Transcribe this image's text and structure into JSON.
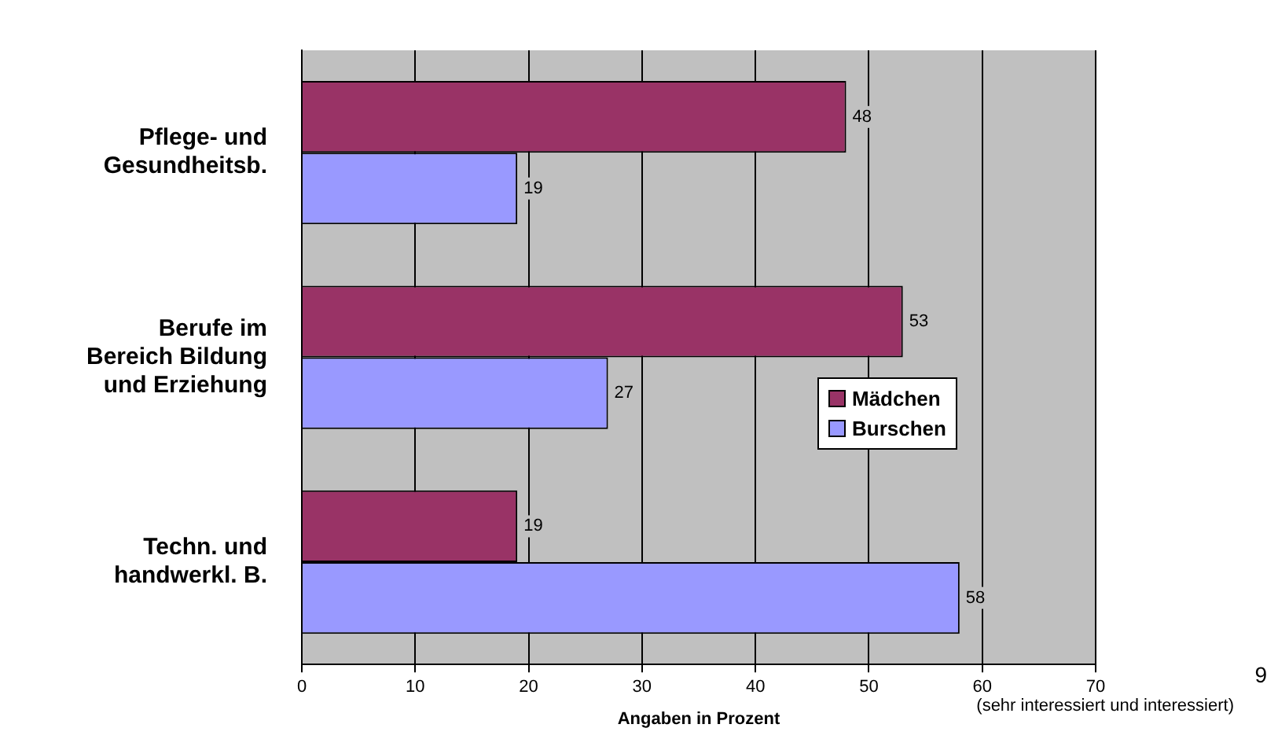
{
  "chart_data": {
    "type": "bar",
    "orientation": "horizontal",
    "categories": [
      "Pflege- und Gesundheitsb.",
      "Berufe im Bereich Bildung und Erziehung",
      "Techn. und handwerkl. B."
    ],
    "series": [
      {
        "name": "Mädchen",
        "color": "#993366",
        "values": [
          48,
          53,
          19
        ]
      },
      {
        "name": "Burschen",
        "color": "#9999ff",
        "values": [
          19,
          27,
          58
        ]
      }
    ],
    "xlim": [
      0,
      70
    ],
    "xticks": [
      0,
      10,
      20,
      30,
      40,
      50,
      60,
      70
    ],
    "xlabel": "Angaben in Prozent",
    "grid": "x",
    "legend": "right",
    "data_labels": true,
    "annotations": [
      "(sehr interessiert und interessiert)",
      "9"
    ]
  }
}
